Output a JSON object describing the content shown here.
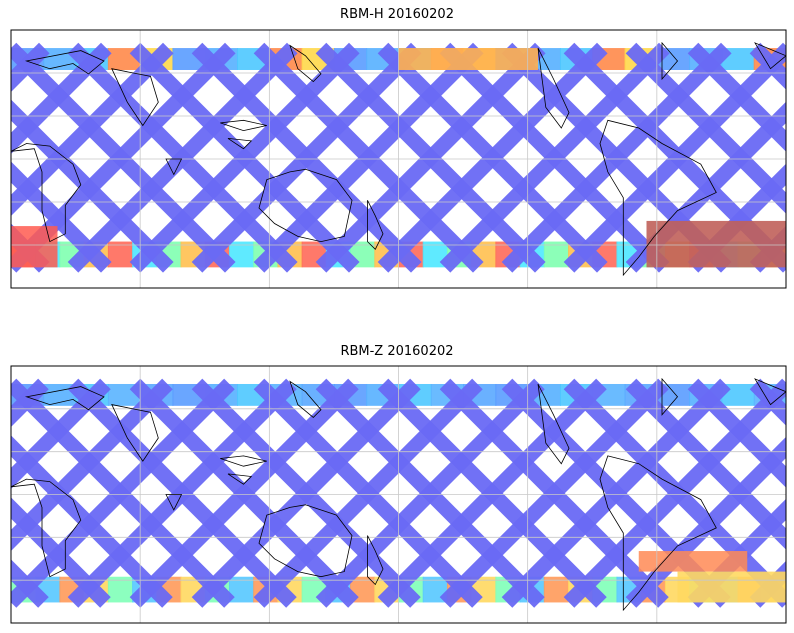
{
  "panels": [
    {
      "title": "RBM-H 20160202",
      "band_colors": [
        "#5a9cff",
        "#56b0ff",
        "#4ec8ff",
        "#ff8a4a",
        "#ffd84a"
      ],
      "swath_color": "#6a6af5",
      "south_colors": [
        "#ff6a5a",
        "#ffc050",
        "#80ffb0",
        "#4ee8ff"
      ],
      "hotspot_color": "#c0605a"
    },
    {
      "title": "RBM-Z 20160202",
      "band_colors": [
        "#5a9cff",
        "#56b0ff",
        "#4ec8ff",
        "#5ab4ff",
        "#5aa8ff"
      ],
      "swath_color": "#6a6af5",
      "south_colors": [
        "#56c8ff",
        "#80ffb8",
        "#ffd860",
        "#ff9a5a"
      ],
      "hotspot_color": "#ff8a55"
    }
  ],
  "colors": {
    "frame": "#000000",
    "grid": "#c8c8c8",
    "coast": "#000000"
  }
}
